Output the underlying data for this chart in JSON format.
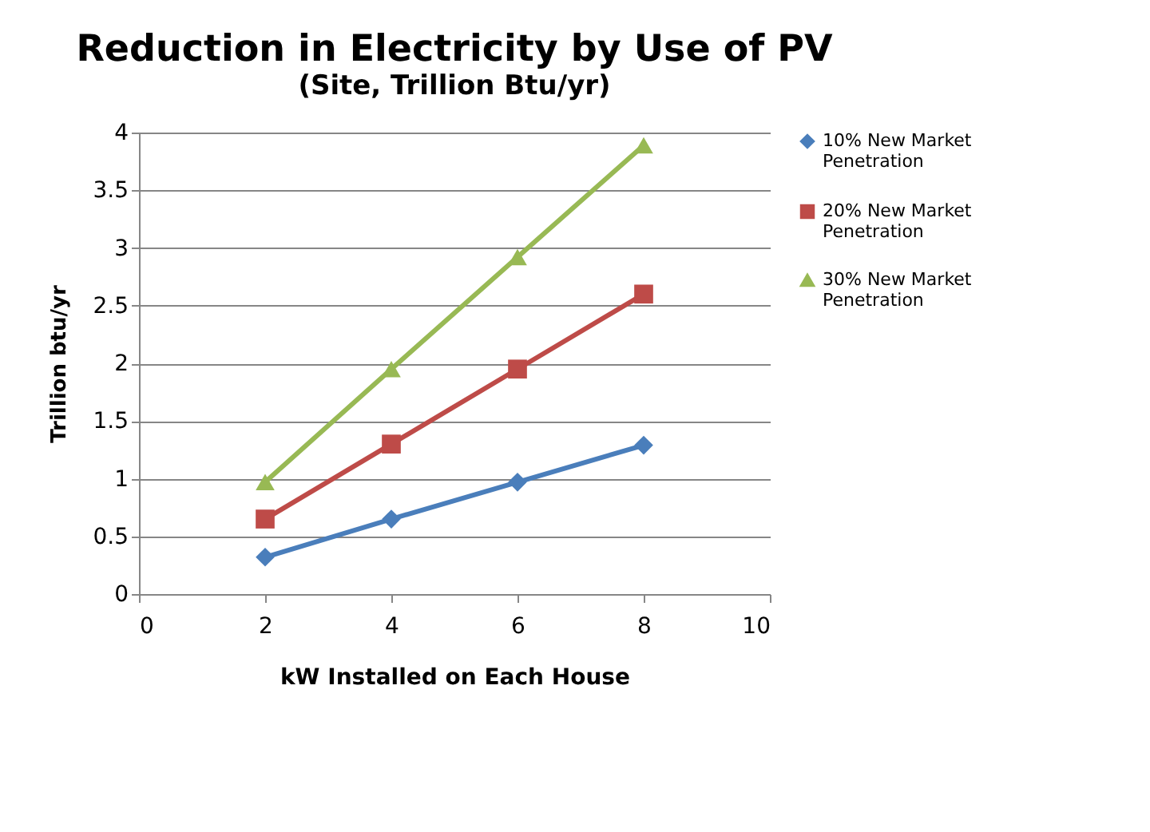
{
  "chart_data": {
    "type": "line",
    "title": "Reduction in Electricity by Use of PV",
    "subtitle": "(Site, Trillion Btu/yr)",
    "xlabel": "kW Installed on Each House",
    "ylabel": "Trillion btu/yr",
    "x": [
      2,
      4,
      6,
      8
    ],
    "series": [
      {
        "name": "10% New Market Penetration",
        "color": "#4a7ebb",
        "marker": "diamond",
        "values": [
          0.32,
          0.65,
          0.97,
          1.29
        ]
      },
      {
        "name": "20% New Market Penetration",
        "color": "#be4b48",
        "marker": "square",
        "values": [
          0.65,
          1.3,
          1.95,
          2.6
        ]
      },
      {
        "name": "30% New Market Penetration",
        "color": "#98b954",
        "marker": "triangle",
        "values": [
          0.97,
          1.95,
          2.92,
          3.89
        ]
      }
    ],
    "xlim": [
      0,
      10
    ],
    "xticks": [
      0,
      2,
      4,
      6,
      8,
      10
    ],
    "ylim": [
      0,
      4
    ],
    "yticks": [
      0,
      0.5,
      1,
      1.5,
      2,
      2.5,
      3,
      3.5,
      4
    ],
    "grid": "y",
    "legend": "right",
    "line_style": "solid"
  }
}
